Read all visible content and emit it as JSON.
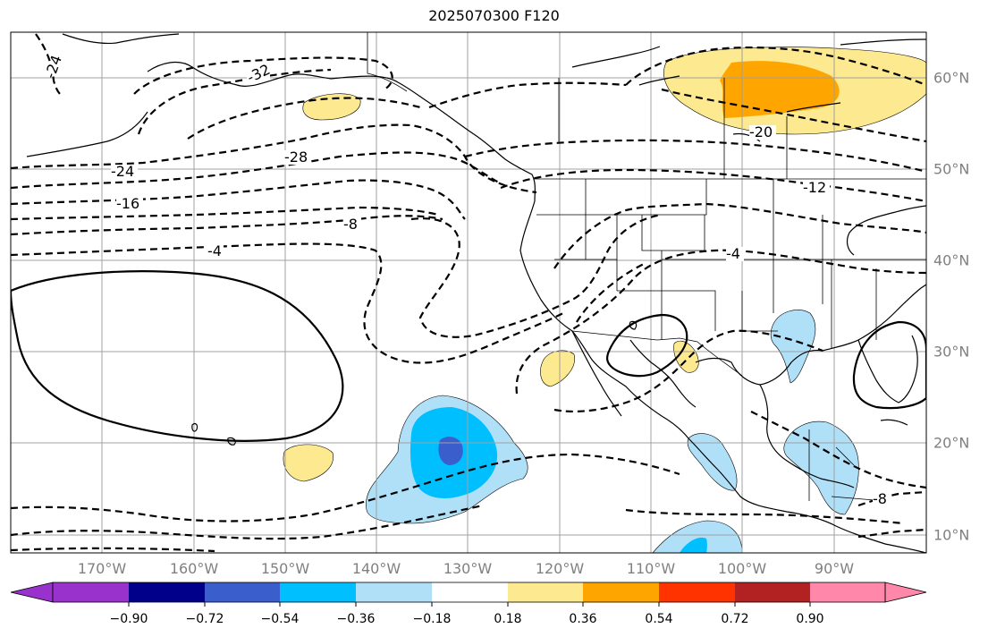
{
  "title": "2025070300 F120",
  "map": {
    "projection": "PlateCarree",
    "lon_range": [
      -180,
      -80
    ],
    "lat_range": [
      8,
      65
    ],
    "gridlines": true,
    "coastlines": true,
    "borders": true,
    "states": true
  },
  "lon_labels": [
    "170°W",
    "160°W",
    "150°W",
    "140°W",
    "130°W",
    "120°W",
    "110°W",
    "100°W",
    "90°W"
  ],
  "lat_labels": [
    "60°N",
    "50°N",
    "40°N",
    "30°N",
    "20°N",
    "10°N"
  ],
  "contour_labels": [
    "-24",
    "-32",
    "-28",
    "-24",
    "-16",
    "-8",
    "-4",
    "-20",
    "-12",
    "-4",
    "-8"
  ],
  "colorbar": {
    "ticks": [
      "−0.90",
      "−0.72",
      "−0.54",
      "−0.36",
      "−0.18",
      "0.18",
      "0.36",
      "0.54",
      "0.72",
      "0.90"
    ],
    "colors": [
      "#9932cc",
      "#00008b",
      "#3a5fcd",
      "#00bfff",
      "#b0e0f8",
      "#ffffff",
      "#fde98f",
      "#ffa500",
      "#ff3300",
      "#b22222",
      "#ff88aa"
    ],
    "extend": "both"
  }
}
